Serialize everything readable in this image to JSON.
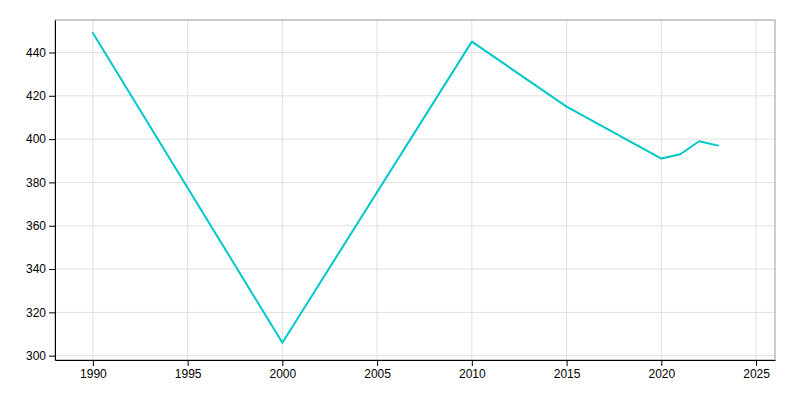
{
  "chart_data": {
    "type": "line",
    "x": [
      1990,
      2000,
      2010,
      2015,
      2020,
      2021,
      2022,
      2023
    ],
    "values": [
      449,
      306,
      445,
      415,
      391,
      393,
      399,
      397
    ],
    "color": "#00C8C8",
    "xlim": [
      1988,
      2026
    ],
    "ylim": [
      298,
      455
    ],
    "xticks": [
      1990,
      1995,
      2000,
      2005,
      2010,
      2015,
      2020,
      2025
    ],
    "yticks": [
      300,
      320,
      340,
      360,
      380,
      400,
      420,
      440
    ],
    "grid": true
  }
}
